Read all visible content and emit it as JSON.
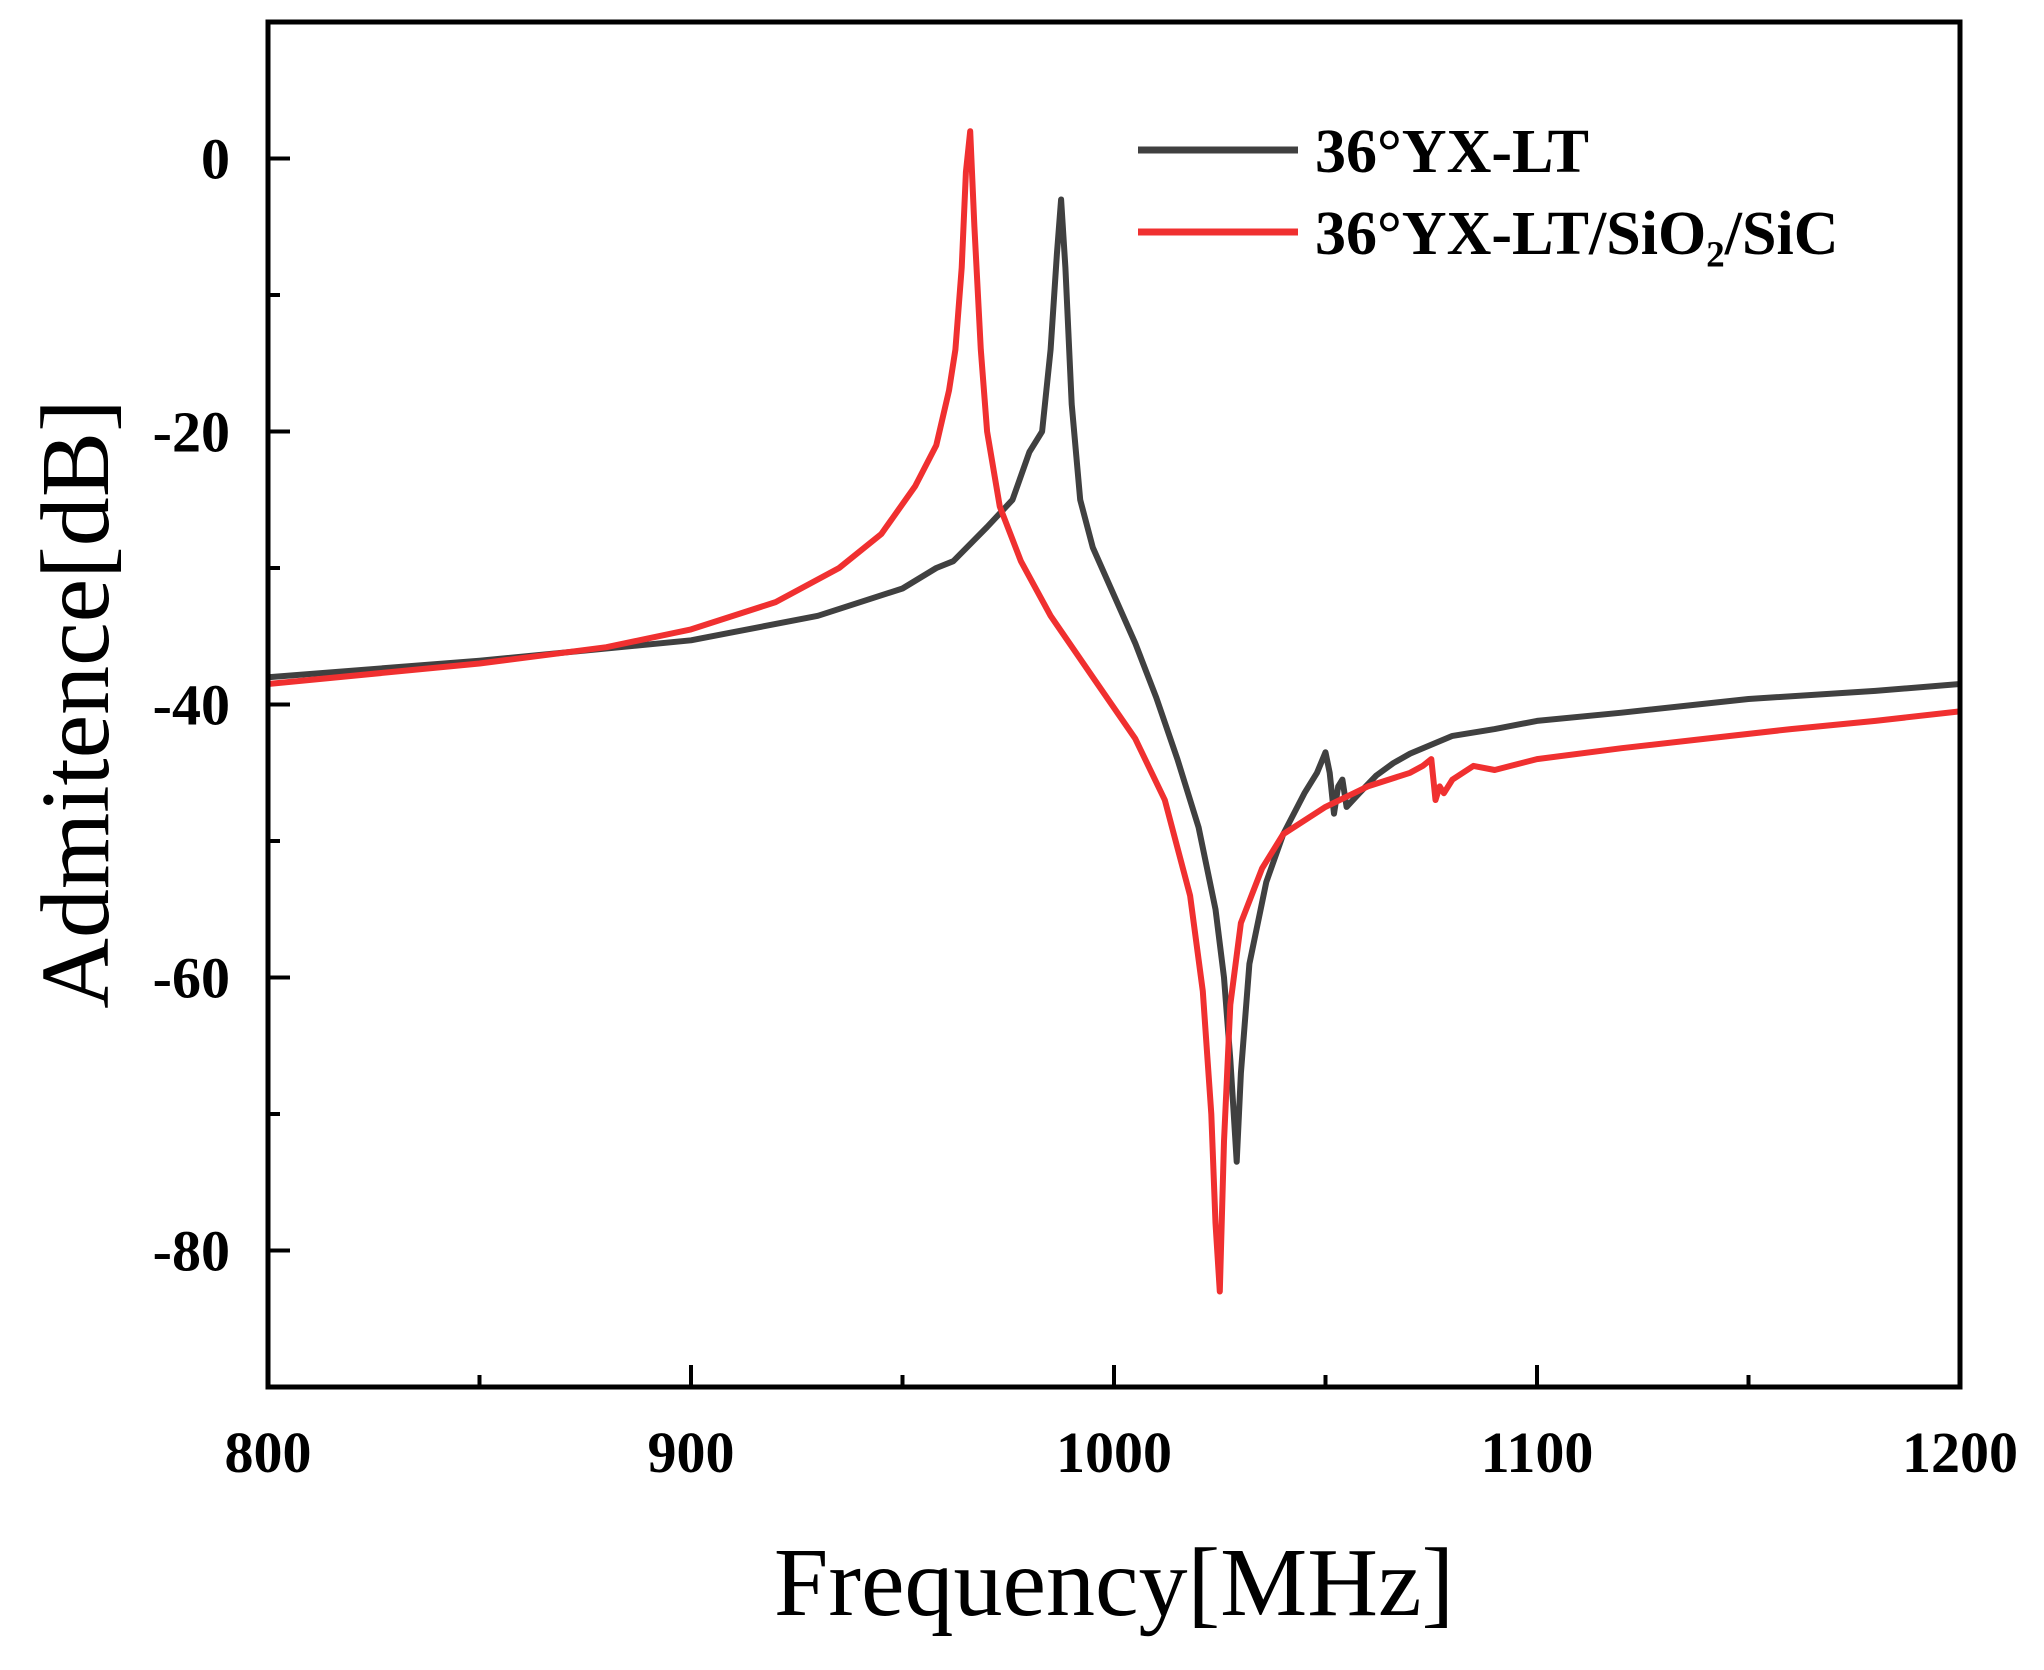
{
  "chart_data": {
    "type": "line",
    "title": "",
    "xlabel": "Frequency[MHz]",
    "ylabel": "Admitence[dB]",
    "xlim": [
      800,
      1200
    ],
    "ylim": [
      -90,
      10
    ],
    "xticks": [
      800,
      900,
      1000,
      1100,
      1200
    ],
    "yticks": [
      0,
      -20,
      -40,
      -60,
      -80
    ],
    "grid": false,
    "legend_position": "top-right",
    "series": [
      {
        "name": "36°YX-LT",
        "color": "#404040",
        "x": [
          800,
          850,
          900,
          930,
          950,
          958,
          962,
          970,
          976,
          980,
          983,
          985,
          986.5,
          987.5,
          988.5,
          990,
          992,
          995,
          1000,
          1005,
          1010,
          1015,
          1020,
          1024,
          1026,
          1027.5,
          1028.5,
          1029,
          1030,
          1032,
          1036,
          1040,
          1045,
          1048,
          1050,
          1051,
          1052,
          1053,
          1054,
          1055,
          1058,
          1062,
          1066,
          1070,
          1080,
          1090,
          1100,
          1120,
          1150,
          1180,
          1200
        ],
        "y": [
          -38,
          -36.8,
          -35.3,
          -33.5,
          -31.5,
          -30,
          -29.5,
          -27,
          -25,
          -21.5,
          -20,
          -14,
          -7,
          -3,
          -8,
          -18,
          -25,
          -28.5,
          -32,
          -35.5,
          -39.5,
          -44,
          -49,
          -55,
          -60,
          -66,
          -71,
          -73.5,
          -67,
          -59,
          -53,
          -49.5,
          -46.5,
          -45,
          -43.5,
          -45,
          -48,
          -46,
          -45.5,
          -47.5,
          -46.5,
          -45.2,
          -44.3,
          -43.6,
          -42.3,
          -41.8,
          -41.2,
          -40.6,
          -39.6,
          -39,
          -38.5
        ]
      },
      {
        "name": "36°YX-LT/SiO₂/SiC",
        "color": "#f03030",
        "x": [
          800,
          850,
          880,
          900,
          920,
          935,
          945,
          953,
          958,
          961,
          962.5,
          964,
          965,
          966,
          967,
          968.5,
          970,
          973,
          978,
          985,
          995,
          1005,
          1012,
          1018,
          1021,
          1023,
          1024,
          1025,
          1026,
          1027.5,
          1030,
          1035,
          1040,
          1050,
          1060,
          1070,
          1073,
          1075,
          1076,
          1077,
          1078,
          1080,
          1085,
          1090,
          1100,
          1120,
          1140,
          1160,
          1180,
          1200
        ],
        "y": [
          -38.5,
          -37,
          -35.8,
          -34.5,
          -32.5,
          -30,
          -27.5,
          -24,
          -21,
          -17,
          -14,
          -8,
          -1,
          2,
          -5,
          -14,
          -20,
          -25.5,
          -29.5,
          -33.5,
          -38,
          -42.5,
          -47,
          -54,
          -61,
          -70,
          -78,
          -83,
          -72,
          -62,
          -56,
          -52,
          -49.5,
          -47.5,
          -46,
          -45,
          -44.5,
          -44,
          -47,
          -46,
          -46.5,
          -45.5,
          -44.5,
          -44.8,
          -44,
          -43.2,
          -42.5,
          -41.8,
          -41.2,
          -40.5
        ]
      }
    ]
  }
}
